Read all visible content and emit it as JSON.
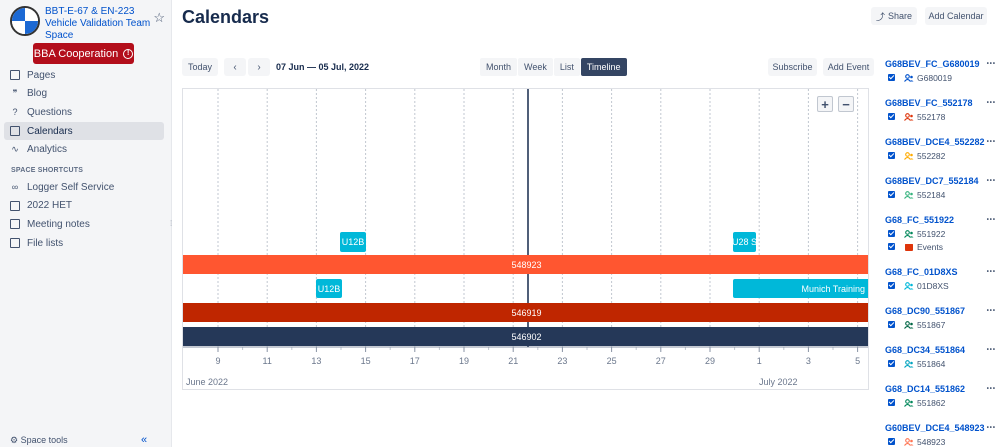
{
  "space": {
    "title": "BBT-E-67 & EN-223 Vehicle Validation Team Space",
    "badge": "BBA Cooperation"
  },
  "nav": [
    {
      "label": "Pages",
      "icon": "page-icon"
    },
    {
      "label": "Blog",
      "icon": "quote-icon"
    },
    {
      "label": "Questions",
      "icon": "question-icon"
    },
    {
      "label": "Calendars",
      "icon": "calendar-icon",
      "active": true
    },
    {
      "label": "Analytics",
      "icon": "analytics-icon"
    }
  ],
  "shortcuts_header": "SPACE SHORTCUTS",
  "shortcuts": [
    {
      "label": "Logger Self Service",
      "icon": "link-icon"
    },
    {
      "label": "2022 HET",
      "icon": "page-icon"
    },
    {
      "label": "Meeting notes",
      "icon": "page-icon"
    },
    {
      "label": "File lists",
      "icon": "page-icon"
    }
  ],
  "space_tools": "Space tools",
  "page_title": "Calendars",
  "header_buttons": {
    "share": "Share",
    "add_calendar": "Add Calendar"
  },
  "toolbar": {
    "today": "Today",
    "range": "07 Jun — 05 Jul, 2022",
    "views": [
      "Month",
      "Week",
      "List",
      "Timeline"
    ],
    "active_view": "Timeline",
    "subscribe": "Subscribe",
    "add_event": "Add Event"
  },
  "timeline": {
    "day_labels": [
      "9",
      "11",
      "13",
      "15",
      "17",
      "19",
      "21",
      "23",
      "25",
      "27",
      "29",
      "1",
      "3",
      "5"
    ],
    "month_labels": [
      "June 2022",
      "July 2022"
    ],
    "events": [
      {
        "label": "U12B",
        "color": "#00b8d9",
        "kind": "box",
        "row": 0,
        "slot": "a"
      },
      {
        "label": "U28 S",
        "color": "#00b8d9",
        "kind": "box",
        "row": 0,
        "slot": "b"
      },
      {
        "label": "548923",
        "color": "#ff5630",
        "kind": "full",
        "row": 1
      },
      {
        "label": "U12B",
        "color": "#00b8d9",
        "kind": "box",
        "row": 2,
        "slot": "c"
      },
      {
        "label": "Munich Training",
        "color": "#00b8d9",
        "kind": "tail",
        "row": 2
      },
      {
        "label": "546919",
        "color": "#bf2600",
        "kind": "full",
        "row": 3
      },
      {
        "label": "546902",
        "color": "#253858",
        "kind": "full",
        "row": 4
      }
    ]
  },
  "calendars": [
    {
      "name": "G68BEV_FC_G680019",
      "subs": [
        {
          "label": "G680019",
          "color": "#0052cc",
          "icon": "people-icon"
        }
      ]
    },
    {
      "name": "G68BEV_FC_552178",
      "subs": [
        {
          "label": "552178",
          "color": "#de350b",
          "icon": "people-icon"
        }
      ]
    },
    {
      "name": "G68BEV_DCE4_552282",
      "subs": [
        {
          "label": "552282",
          "color": "#ffab00",
          "icon": "people-icon"
        }
      ]
    },
    {
      "name": "G68BEV_DC7_552184",
      "subs": [
        {
          "label": "552184",
          "color": "#36b37e",
          "icon": "people-icon"
        }
      ]
    },
    {
      "name": "G68_FC_551922",
      "subs": [
        {
          "label": "551922",
          "color": "#00875a",
          "icon": "people-icon"
        },
        {
          "label": "Events",
          "color": "#de350b",
          "icon": "calendar-icon"
        }
      ]
    },
    {
      "name": "G68_FC_01D8XS",
      "subs": [
        {
          "label": "01D8XS",
          "color": "#00b8d9",
          "icon": "people-icon"
        }
      ]
    },
    {
      "name": "G68_DC90_551867",
      "subs": [
        {
          "label": "551867",
          "color": "#006644",
          "icon": "people-icon"
        }
      ]
    },
    {
      "name": "G68_DC34_551864",
      "subs": [
        {
          "label": "551864",
          "color": "#00a3bf",
          "icon": "people-icon"
        }
      ]
    },
    {
      "name": "G68_DC14_551862",
      "subs": [
        {
          "label": "551862",
          "color": "#00875a",
          "icon": "people-icon"
        }
      ]
    },
    {
      "name": "G60BEV_DCE4_548923",
      "subs": [
        {
          "label": "548923",
          "color": "#ff7452",
          "icon": "people-icon"
        }
      ]
    }
  ]
}
